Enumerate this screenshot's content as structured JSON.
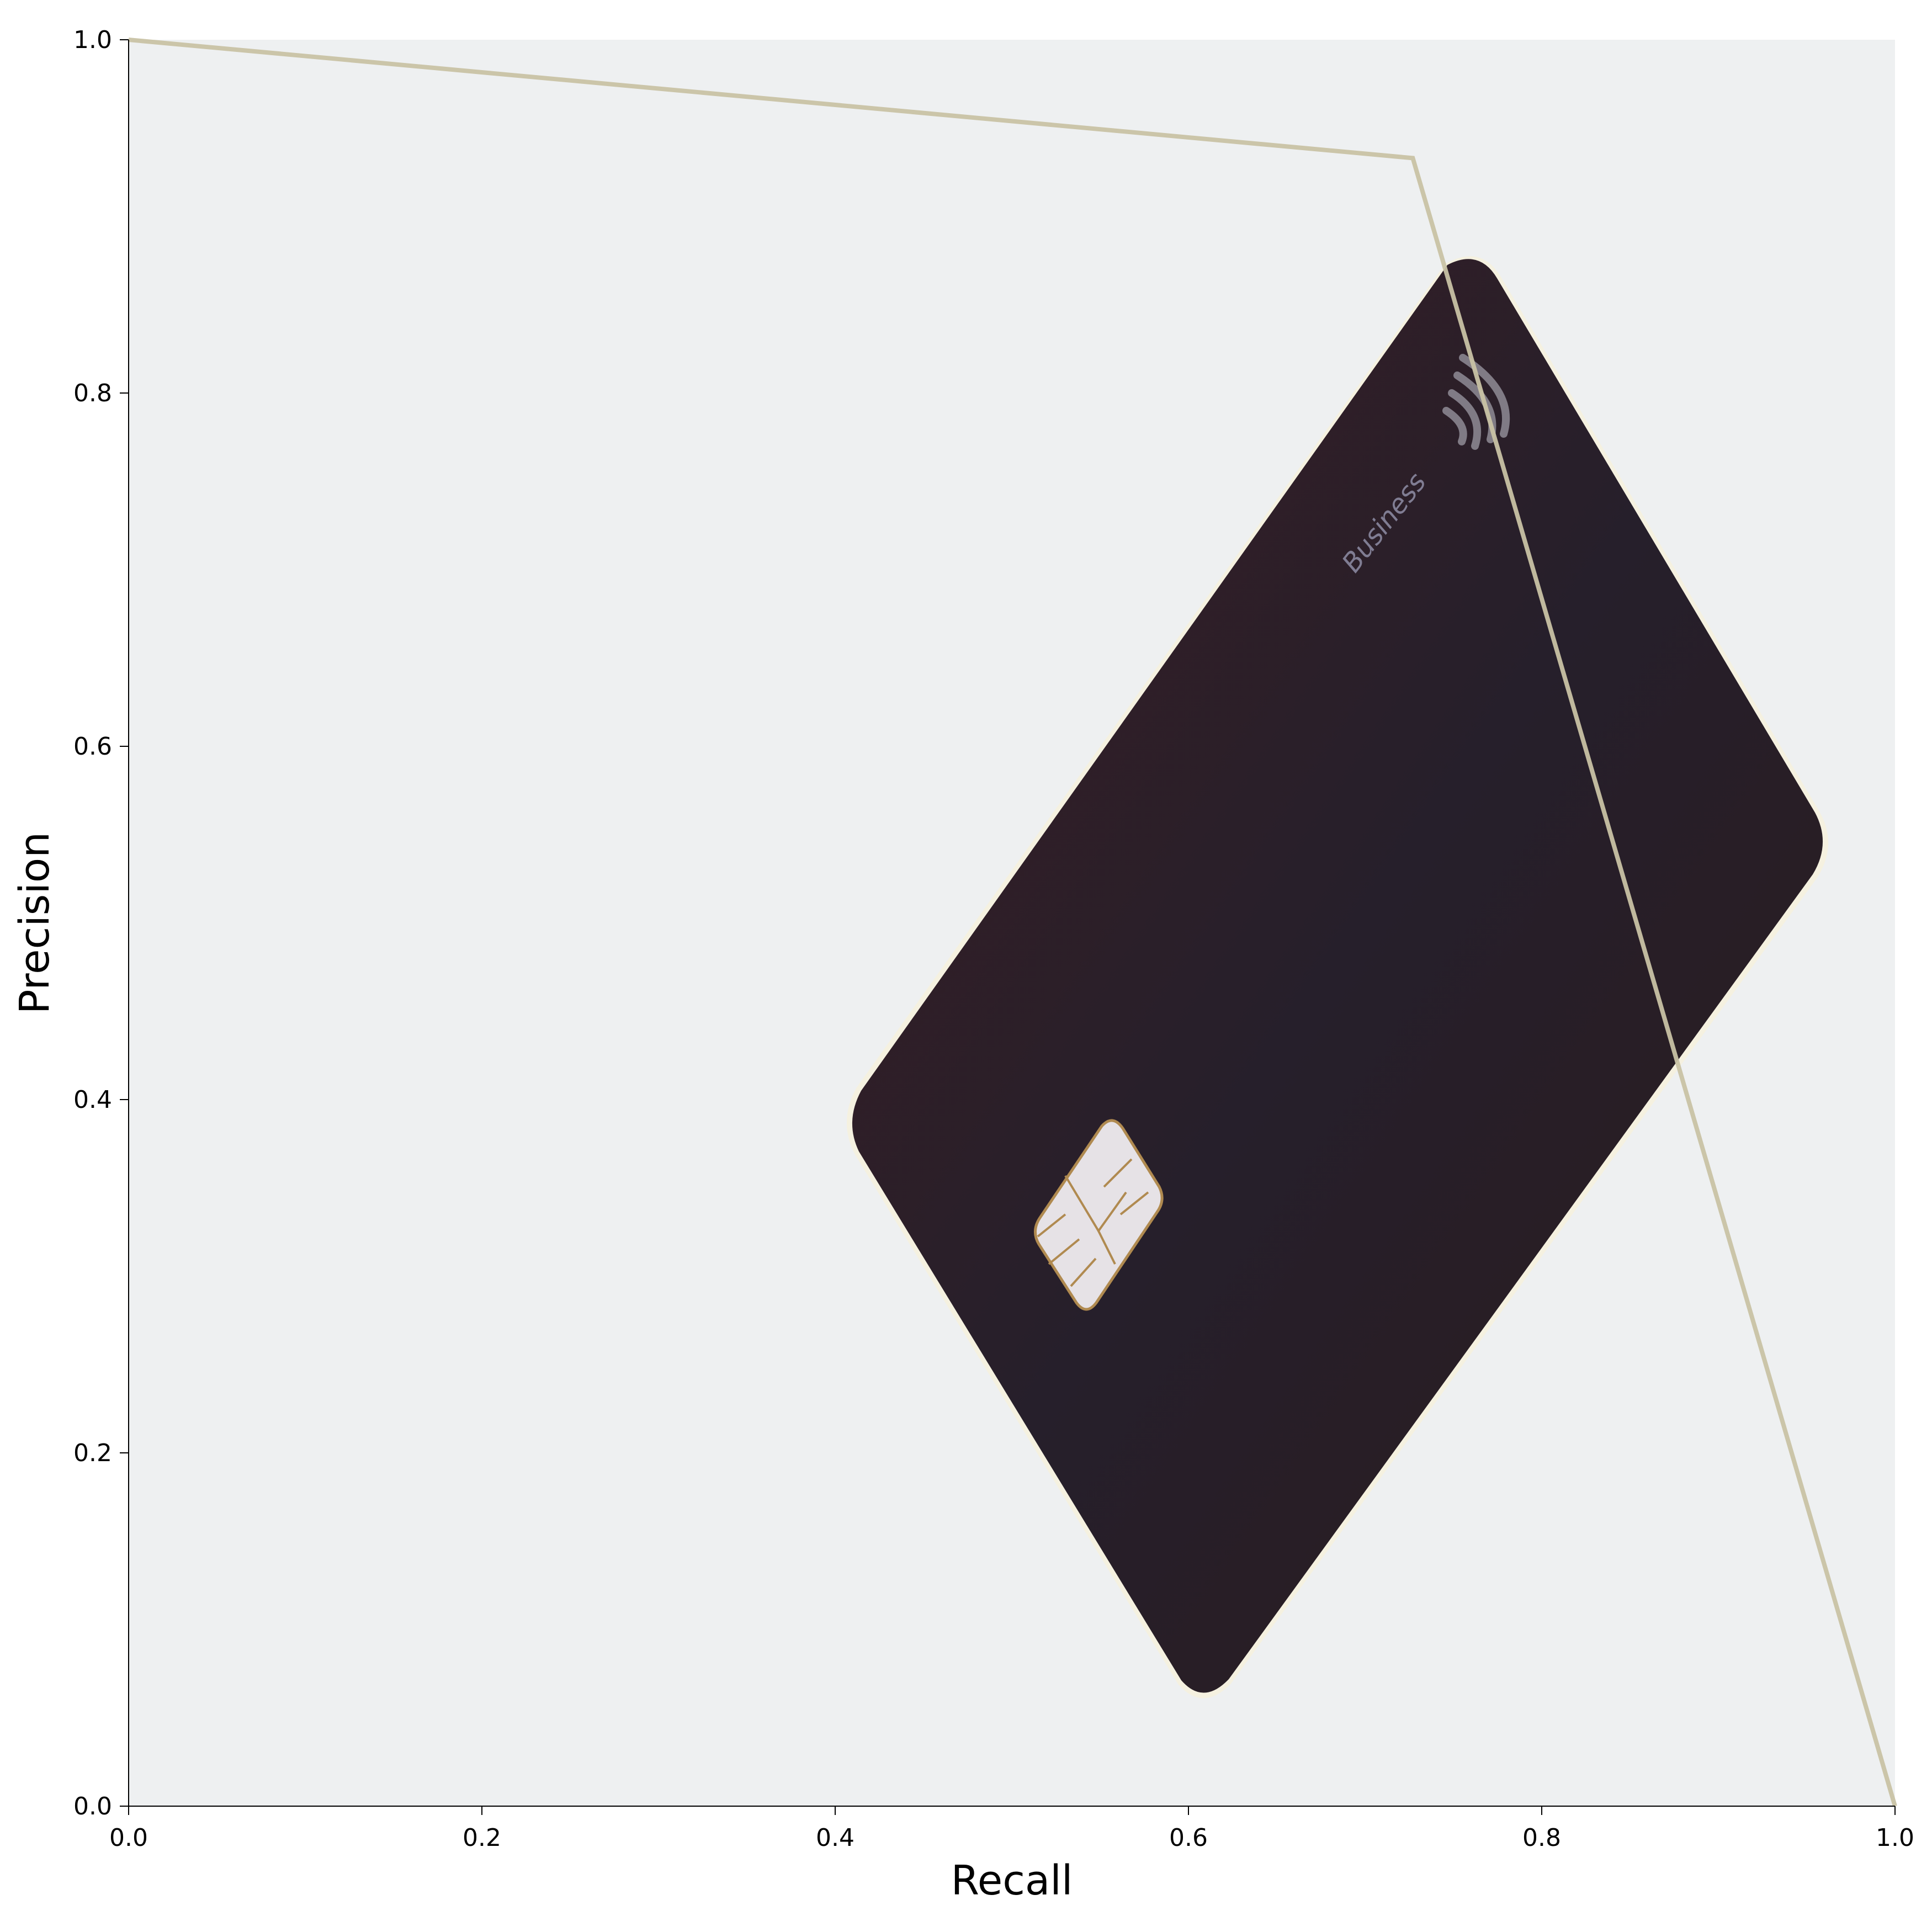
{
  "chart_data": {
    "type": "line",
    "title": "",
    "xlabel": "Recall",
    "ylabel": "Precision",
    "xlim": [
      0.0,
      1.0
    ],
    "ylim": [
      0.0,
      1.0
    ],
    "x_ticks": [
      "0.0",
      "0.2",
      "0.4",
      "0.6",
      "0.8",
      "1.0"
    ],
    "y_ticks": [
      "0.0",
      "0.2",
      "0.4",
      "0.6",
      "0.8",
      "1.0"
    ],
    "grid": false,
    "legend": false,
    "series": [
      {
        "x": [
          0.0,
          0.727,
          1.0
        ],
        "y": [
          1.0,
          0.933,
          0.0
        ],
        "color": "#c8c2a4"
      }
    ]
  },
  "background_image": {
    "subject": "payment-card",
    "card_text": "Business",
    "colors": {
      "backdrop": "#eef0f1",
      "card": "#261b20",
      "chip": "#e6e2e6",
      "chip_lines": "#b08a50"
    }
  }
}
